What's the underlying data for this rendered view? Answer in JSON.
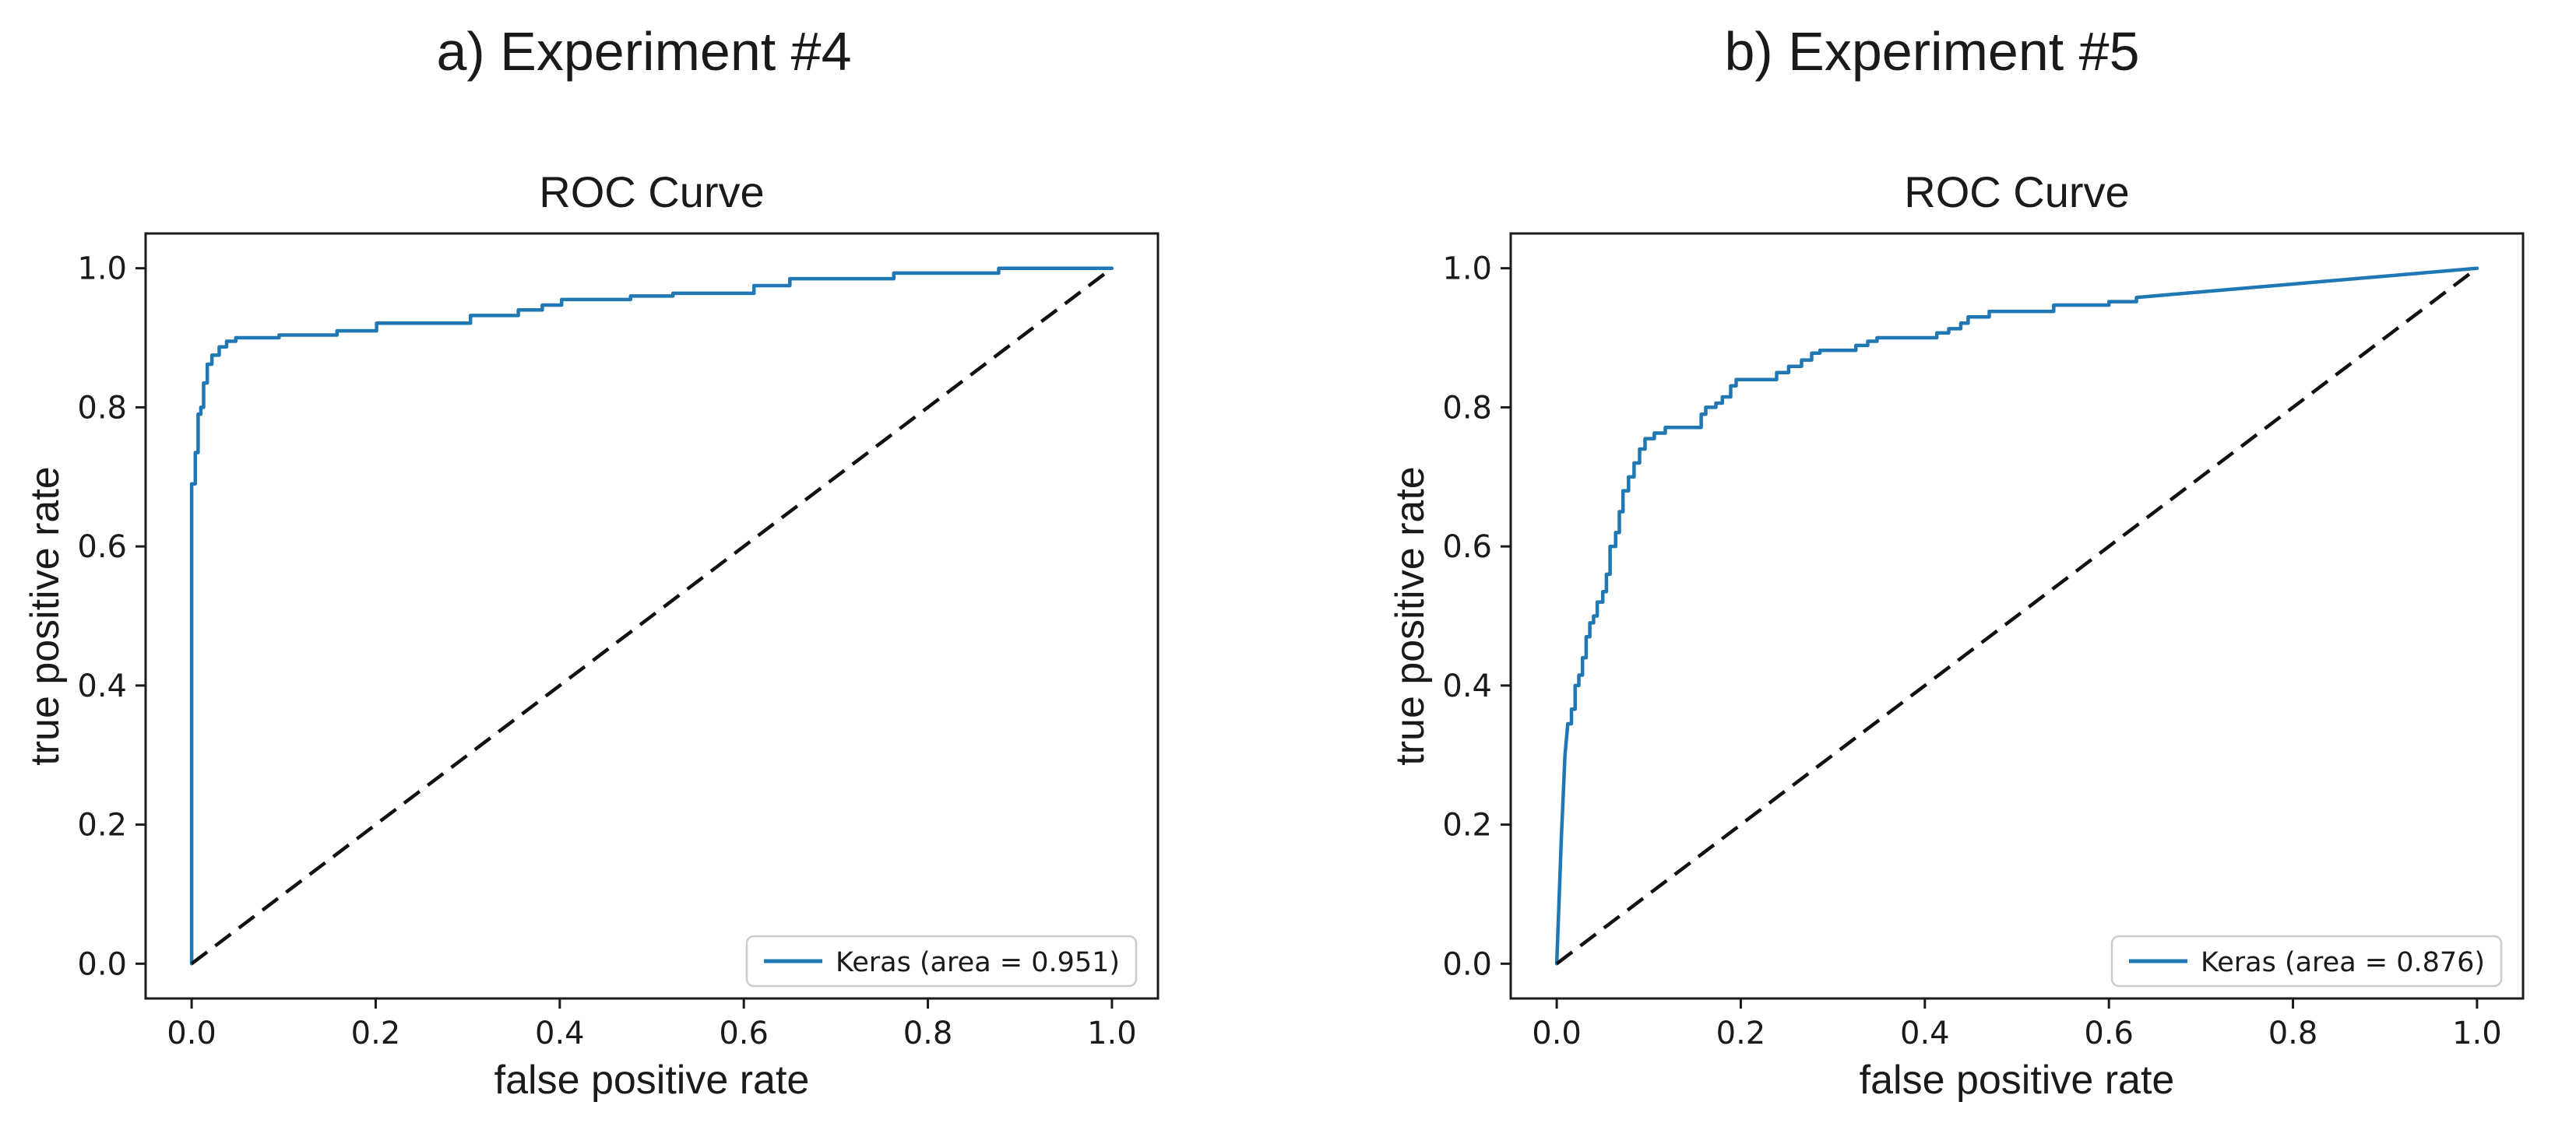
{
  "figure": {
    "panels": [
      {
        "label": "a) Experiment #4"
      },
      {
        "label": "b) Experiment #5"
      }
    ],
    "colors": {
      "curve": "#1f77b4",
      "diagonal": "#111111",
      "text": "#1a1a1a",
      "spine": "#1b1b1b",
      "legend_border": "#cccccc",
      "background": "#ffffff"
    }
  },
  "chart_data": [
    {
      "type": "line",
      "title": "ROC Curve",
      "xlabel": "false positive rate",
      "ylabel": "true positive rate",
      "xlim": [
        -0.05,
        1.05
      ],
      "ylim": [
        -0.05,
        1.05
      ],
      "xticks": [
        0.0,
        0.2,
        0.4,
        0.6,
        0.8,
        1.0
      ],
      "yticks": [
        0.0,
        0.2,
        0.4,
        0.6,
        0.8,
        1.0
      ],
      "grid": false,
      "auc": 0.951,
      "legend": {
        "position": "lower right",
        "label": "Keras (area = 0.951)",
        "color": "#1f77b4"
      },
      "series": [
        {
          "name": "Keras ROC curve",
          "color": "#1f77b4",
          "style": "solid",
          "points": [
            [
              0,
              0
            ],
            [
              0,
              0.69
            ],
            [
              0.004,
              0.69
            ],
            [
              0.004,
              0.735
            ],
            [
              0.007,
              0.735
            ],
            [
              0.007,
              0.79
            ],
            [
              0.01,
              0.79
            ],
            [
              0.01,
              0.8
            ],
            [
              0.013,
              0.8
            ],
            [
              0.013,
              0.835
            ],
            [
              0.017,
              0.835
            ],
            [
              0.017,
              0.862
            ],
            [
              0.022,
              0.862
            ],
            [
              0.022,
              0.875
            ],
            [
              0.03,
              0.875
            ],
            [
              0.03,
              0.887
            ],
            [
              0.038,
              0.887
            ],
            [
              0.038,
              0.895
            ],
            [
              0.048,
              0.895
            ],
            [
              0.048,
              0.9
            ],
            [
              0.095,
              0.9
            ],
            [
              0.095,
              0.904
            ],
            [
              0.158,
              0.904
            ],
            [
              0.158,
              0.91
            ],
            [
              0.201,
              0.91
            ],
            [
              0.201,
              0.921
            ],
            [
              0.303,
              0.921
            ],
            [
              0.303,
              0.932
            ],
            [
              0.355,
              0.932
            ],
            [
              0.355,
              0.94
            ],
            [
              0.381,
              0.94
            ],
            [
              0.381,
              0.947
            ],
            [
              0.402,
              0.947
            ],
            [
              0.402,
              0.955
            ],
            [
              0.477,
              0.955
            ],
            [
              0.477,
              0.96
            ],
            [
              0.523,
              0.96
            ],
            [
              0.523,
              0.964
            ],
            [
              0.611,
              0.964
            ],
            [
              0.611,
              0.975
            ],
            [
              0.65,
              0.975
            ],
            [
              0.65,
              0.985
            ],
            [
              0.763,
              0.985
            ],
            [
              0.763,
              0.993
            ],
            [
              0.877,
              0.993
            ],
            [
              0.877,
              1
            ],
            [
              1,
              1
            ]
          ]
        },
        {
          "name": "chance diagonal",
          "color": "#111111",
          "style": "dashed",
          "points": [
            [
              0,
              0
            ],
            [
              1,
              1
            ]
          ]
        }
      ]
    },
    {
      "type": "line",
      "title": "ROC Curve",
      "xlabel": "false positive rate",
      "ylabel": "true positive rate",
      "xlim": [
        -0.05,
        1.05
      ],
      "ylim": [
        -0.05,
        1.05
      ],
      "xticks": [
        0.0,
        0.2,
        0.4,
        0.6,
        0.8,
        1.0
      ],
      "yticks": [
        0.0,
        0.2,
        0.4,
        0.6,
        0.8,
        1.0
      ],
      "grid": false,
      "auc": 0.876,
      "legend": {
        "position": "lower right",
        "label": "Keras (area = 0.876)",
        "color": "#1f77b4"
      },
      "series": [
        {
          "name": "Keras ROC curve",
          "color": "#1f77b4",
          "style": "solid",
          "points": [
            [
              0,
              0
            ],
            [
              0.005,
              0.18
            ],
            [
              0.009,
              0.3
            ],
            [
              0.012,
              0.345
            ],
            [
              0.016,
              0.345
            ],
            [
              0.016,
              0.366
            ],
            [
              0.02,
              0.366
            ],
            [
              0.02,
              0.4
            ],
            [
              0.024,
              0.4
            ],
            [
              0.024,
              0.415
            ],
            [
              0.028,
              0.415
            ],
            [
              0.028,
              0.44
            ],
            [
              0.032,
              0.44
            ],
            [
              0.032,
              0.47
            ],
            [
              0.036,
              0.47
            ],
            [
              0.036,
              0.49
            ],
            [
              0.04,
              0.49
            ],
            [
              0.04,
              0.5
            ],
            [
              0.044,
              0.5
            ],
            [
              0.044,
              0.52
            ],
            [
              0.05,
              0.52
            ],
            [
              0.05,
              0.535
            ],
            [
              0.054,
              0.535
            ],
            [
              0.054,
              0.56
            ],
            [
              0.058,
              0.56
            ],
            [
              0.058,
              0.6
            ],
            [
              0.064,
              0.6
            ],
            [
              0.064,
              0.62
            ],
            [
              0.068,
              0.62
            ],
            [
              0.068,
              0.65
            ],
            [
              0.072,
              0.65
            ],
            [
              0.072,
              0.68
            ],
            [
              0.078,
              0.68
            ],
            [
              0.078,
              0.7
            ],
            [
              0.084,
              0.7
            ],
            [
              0.084,
              0.72
            ],
            [
              0.09,
              0.72
            ],
            [
              0.09,
              0.74
            ],
            [
              0.096,
              0.74
            ],
            [
              0.096,
              0.755
            ],
            [
              0.106,
              0.755
            ],
            [
              0.106,
              0.763
            ],
            [
              0.118,
              0.763
            ],
            [
              0.118,
              0.771
            ],
            [
              0.157,
              0.771
            ],
            [
              0.157,
              0.79
            ],
            [
              0.162,
              0.79
            ],
            [
              0.162,
              0.8
            ],
            [
              0.173,
              0.8
            ],
            [
              0.173,
              0.806
            ],
            [
              0.18,
              0.806
            ],
            [
              0.18,
              0.815
            ],
            [
              0.189,
              0.815
            ],
            [
              0.189,
              0.831
            ],
            [
              0.195,
              0.831
            ],
            [
              0.195,
              0.84
            ],
            [
              0.239,
              0.84
            ],
            [
              0.239,
              0.85
            ],
            [
              0.252,
              0.85
            ],
            [
              0.252,
              0.859
            ],
            [
              0.266,
              0.859
            ],
            [
              0.266,
              0.868
            ],
            [
              0.277,
              0.868
            ],
            [
              0.277,
              0.878
            ],
            [
              0.286,
              0.878
            ],
            [
              0.286,
              0.882
            ],
            [
              0.325,
              0.882
            ],
            [
              0.325,
              0.889
            ],
            [
              0.338,
              0.889
            ],
            [
              0.338,
              0.895
            ],
            [
              0.348,
              0.895
            ],
            [
              0.348,
              0.9
            ],
            [
              0.413,
              0.9
            ],
            [
              0.413,
              0.907
            ],
            [
              0.426,
              0.907
            ],
            [
              0.426,
              0.913
            ],
            [
              0.439,
              0.913
            ],
            [
              0.439,
              0.921
            ],
            [
              0.447,
              0.921
            ],
            [
              0.447,
              0.93
            ],
            [
              0.47,
              0.93
            ],
            [
              0.47,
              0.938
            ],
            [
              0.54,
              0.938
            ],
            [
              0.54,
              0.947
            ],
            [
              0.6,
              0.947
            ],
            [
              0.6,
              0.952
            ],
            [
              0.63,
              0.952
            ],
            [
              0.63,
              0.958
            ],
            [
              1,
              1
            ]
          ]
        },
        {
          "name": "chance diagonal",
          "color": "#111111",
          "style": "dashed",
          "points": [
            [
              0,
              0
            ],
            [
              1,
              1
            ]
          ]
        }
      ]
    }
  ]
}
